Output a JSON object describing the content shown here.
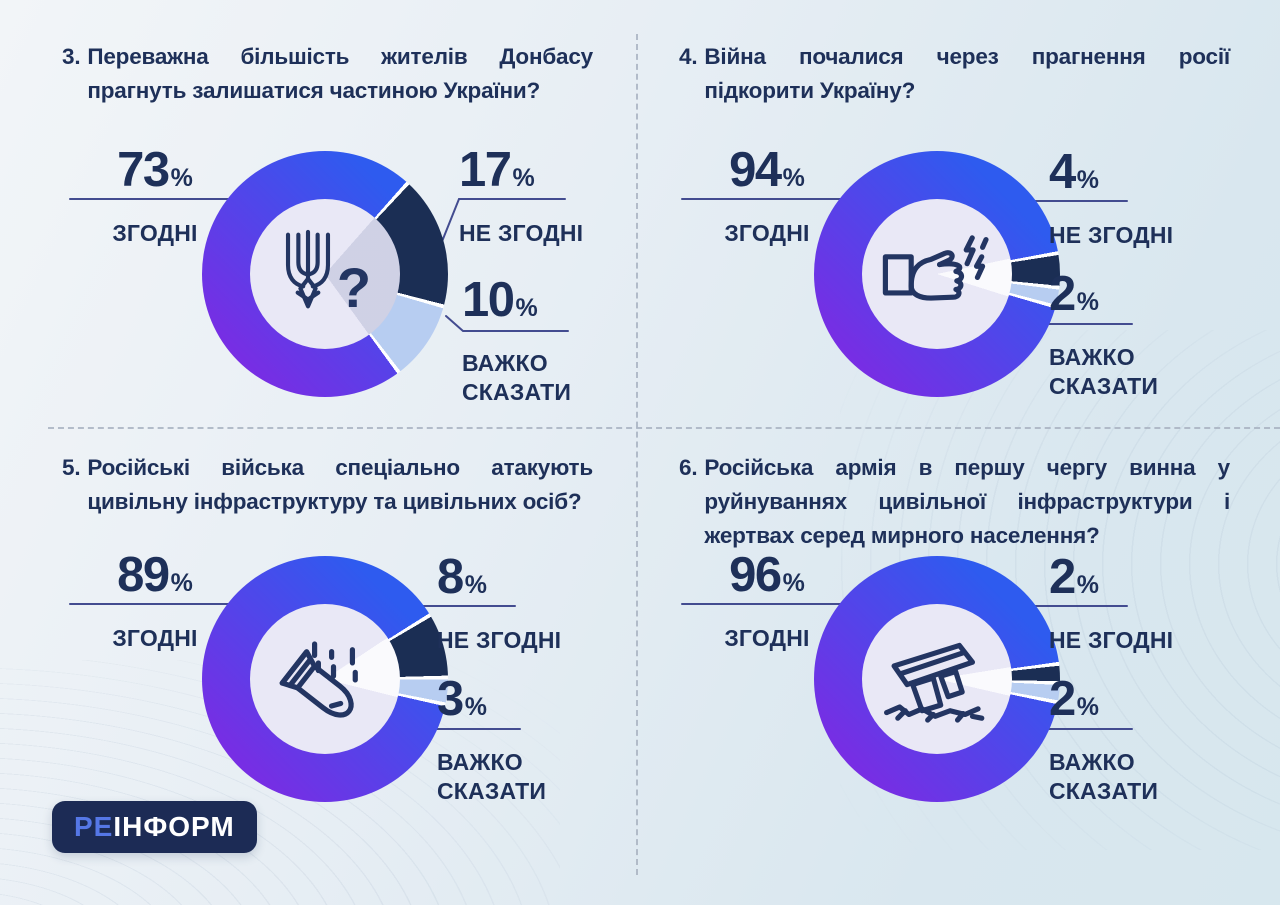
{
  "percent_sign": "%",
  "colors": {
    "text_navy": "#1e3059",
    "segment_disagree": "#1b2e54",
    "segment_hard": "#b7cdf1",
    "ring_gradient_blue": "#2e5bef",
    "ring_gradient_purple": "#8227e2",
    "hole_fill": "#e9e8f6",
    "background_start": "#f2f5f8",
    "background_end": "#d7e7ee",
    "dashed_divider": "#a9b3c2",
    "logo_background": "#1c2b55",
    "logo_prefix_color": "#5577e6"
  },
  "logo": {
    "prefix": "РЕ",
    "rest": "ІНФОРМ"
  },
  "chart_data": [
    {
      "type": "pie",
      "number": "3.",
      "question": "Переважна більшість жителів Донбасу прагнуть залишатися частиною України?",
      "icon": "ukraine-trident-question-icon",
      "icon_text": "?",
      "segments": [
        {
          "label": "ЗГОДНІ",
          "value": 73
        },
        {
          "label": "НЕ ЗГОДНІ",
          "value": 17
        },
        {
          "label": "ВАЖКО СКАЗАТИ",
          "value": 10
        }
      ]
    },
    {
      "type": "pie",
      "number": "4.",
      "question": "Війна почалися через прагнення росії підкорити Україну?",
      "icon": "fist-strike-icon",
      "segments": [
        {
          "label": "ЗГОДНІ",
          "value": 94
        },
        {
          "label": "НЕ ЗГОДНІ",
          "value": 4
        },
        {
          "label": "ВАЖКО СКАЗАТИ",
          "value": 2
        }
      ]
    },
    {
      "type": "pie",
      "number": "5.",
      "question": "Російські війська спеціально атакують цивільну інфраструктуру та цивільних осіб?",
      "icon": "falling-bomb-icon",
      "segments": [
        {
          "label": "ЗГОДНІ",
          "value": 89
        },
        {
          "label": "НЕ ЗГОДНІ",
          "value": 8
        },
        {
          "label": "ВАЖКО СКАЗАТИ",
          "value": 3
        }
      ]
    },
    {
      "type": "pie",
      "number": "6.",
      "question": "Російська армія в першу чергу винна у руйнуваннях цивільної інфраструктури і жертвах серед мирного населення?",
      "icon": "ruined-building-icon",
      "segments": [
        {
          "label": "ЗГОДНІ",
          "value": 96
        },
        {
          "label": "НЕ ЗГОДНІ",
          "value": 2
        },
        {
          "label": "ВАЖКО СКАЗАТИ",
          "value": 2
        }
      ]
    }
  ]
}
